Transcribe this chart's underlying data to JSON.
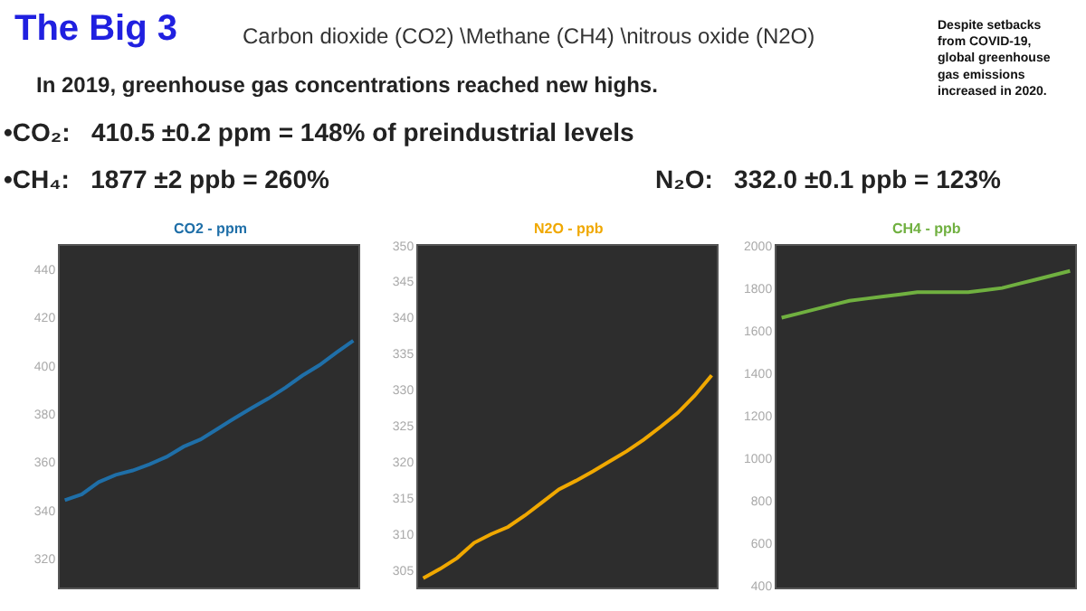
{
  "chart_data": [
    {
      "type": "other",
      "title": "The Big 3",
      "subtitle": "Carbon dioxide (CO2) \\Methane (CH4) \\nitrous oxide (N2O)",
      "annotations": [
        "In 2019, greenhouse gas concentrations reached new highs.",
        "•CO₂:   410.5 ±0.2 ppm = 148% of preindustrial levels",
        "•CH₄:   1877 ±2 ppb = 260%",
        "N₂O:   332.0 ±0.1 ppb = 123%",
        "Despite setbacks from COVID-19, global greenhouse gas emissions increased in 2020."
      ]
    },
    {
      "type": "line",
      "title": "CO2 - ppm",
      "categories": [
        null,
        null,
        null,
        null,
        null,
        null,
        null,
        null,
        null,
        null,
        null,
        null,
        null,
        null,
        null,
        null,
        null,
        null
      ],
      "series": [
        {
          "color": "#1f6fa8",
          "values": [
            344.3,
            346.7,
            351.8,
            354.8,
            356.6,
            359.2,
            362.3,
            366.5,
            369.5,
            373.9,
            378.3,
            382.5,
            386.5,
            391,
            396,
            400.3,
            405.5,
            410.5
          ]
        }
      ],
      "ylim": [
        308,
        450
      ],
      "yticks": [
        320,
        340,
        360,
        380,
        400,
        420,
        440
      ],
      "tick_labels": "y",
      "grid": false,
      "marker": "none",
      "line_style": "solid"
    },
    {
      "type": "line",
      "title": "N2O - ppb",
      "categories": [
        null,
        null,
        null,
        null,
        null,
        null,
        null,
        null,
        null,
        null,
        null,
        null,
        null,
        null,
        null,
        null,
        null,
        null
      ],
      "series": [
        {
          "color": "#f0a800",
          "values": [
            303.9,
            305.2,
            306.7,
            308.8,
            310,
            311,
            312.6,
            314.4,
            316.2,
            317.4,
            318.7,
            320.1,
            321.5,
            323.1,
            324.9,
            326.8,
            329.2,
            332.0
          ]
        }
      ],
      "ylim": [
        302.6,
        350
      ],
      "yticks": [
        305,
        310,
        315,
        320,
        325,
        330,
        335,
        340,
        345,
        350
      ],
      "tick_labels": "y",
      "grid": false,
      "marker": "none",
      "line_style": "solid"
    },
    {
      "type": "line",
      "title": "CH4 - ppb",
      "categories": [
        null,
        null,
        null,
        null,
        null,
        null,
        null,
        null,
        null,
        null,
        null,
        null,
        null,
        null,
        null,
        null,
        null,
        null
      ],
      "series": [
        {
          "color": "#70b040",
          "values": [
            1660,
            1680,
            1700,
            1720,
            1740,
            1750,
            1760,
            1770,
            1780,
            1780,
            1780,
            1780,
            1790,
            1800,
            1820,
            1840,
            1860,
            1880
          ]
        }
      ],
      "ylim": [
        390,
        2000
      ],
      "yticks": [
        400,
        600,
        800,
        1000,
        1200,
        1400,
        1600,
        1800,
        2000
      ],
      "tick_labels": "y",
      "grid": false,
      "marker": "none",
      "line_style": "solid"
    }
  ]
}
